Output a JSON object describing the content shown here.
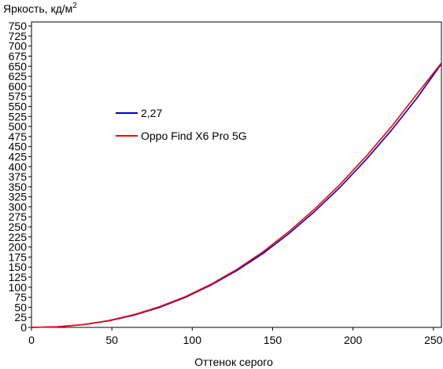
{
  "chart_data": {
    "type": "line",
    "title": "Яркость, кд/м",
    "title_superscript": "2",
    "xlabel": "Оттенок серого",
    "ylabel": "",
    "xlim": [
      0,
      255
    ],
    "ylim": [
      0,
      760
    ],
    "x_ticks": [
      0,
      50,
      100,
      150,
      200,
      250
    ],
    "y_ticks": [
      0,
      25,
      50,
      75,
      100,
      125,
      150,
      175,
      200,
      225,
      250,
      275,
      300,
      325,
      350,
      375,
      400,
      425,
      450,
      475,
      500,
      525,
      550,
      575,
      600,
      625,
      650,
      675,
      700,
      725,
      750
    ],
    "grid": false,
    "legend_position": "middle-left",
    "series": [
      {
        "name": "2,27",
        "color": "#0000cc",
        "x": [
          0,
          16,
          32,
          48,
          64,
          80,
          96,
          112,
          128,
          144,
          160,
          176,
          192,
          208,
          224,
          240,
          255
        ],
        "y": [
          0,
          1.4,
          6.6,
          16.2,
          30.7,
          50.2,
          75.2,
          106,
          142,
          184,
          233,
          288,
          349,
          417,
          491,
          572,
          656
        ]
      },
      {
        "name": "Oppo Find X6 Pro 5G",
        "color": "#ff0000",
        "x": [
          0,
          16,
          32,
          48,
          64,
          80,
          96,
          112,
          128,
          144,
          160,
          176,
          192,
          208,
          224,
          240,
          255
        ],
        "y": [
          0,
          1.6,
          7.0,
          17.0,
          32.0,
          52.0,
          77.0,
          108,
          145,
          188,
          238,
          294,
          356,
          425,
          500,
          582,
          658
        ]
      }
    ]
  }
}
